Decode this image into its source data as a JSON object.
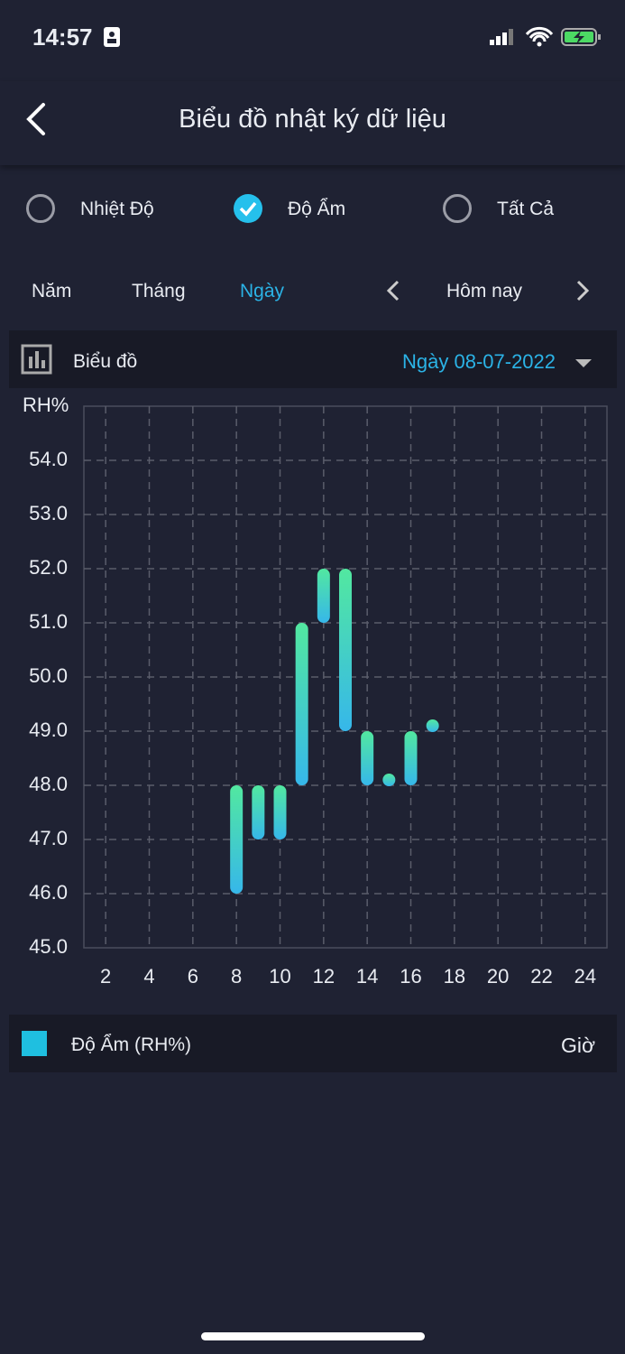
{
  "status_bar": {
    "time": "14:57"
  },
  "header": {
    "title": "Biểu đồ nhật ký dữ liệu"
  },
  "options": [
    "Nhiệt Độ",
    "Độ Ẩm",
    "Tất Cả"
  ],
  "selected_option": 1,
  "periods": [
    "Năm",
    "Tháng",
    "Ngày"
  ],
  "active_period": 2,
  "navigator": "Hôm nay",
  "chart_header": {
    "label": "Biểu đồ",
    "date": "Ngày 08-07-2022"
  },
  "chart_data": {
    "type": "range_bar",
    "y_label": "RH%",
    "x_label": "Giờ",
    "x": [
      8,
      9,
      10,
      11,
      12,
      13,
      14,
      15,
      16,
      17
    ],
    "series": [
      {
        "name": "Độ Ẩm (RH%)",
        "color": "#1fbfe0",
        "low": [
          46,
          47,
          47,
          48,
          51,
          49,
          48,
          48.1,
          48,
          49.1
        ],
        "high": [
          48,
          48,
          48,
          51,
          52,
          52,
          49,
          48.1,
          49,
          49.1
        ]
      }
    ],
    "xlim": [
      1,
      25
    ],
    "xticks": [
      2,
      4,
      6,
      8,
      10,
      12,
      14,
      16,
      18,
      20,
      22,
      24
    ],
    "ylim": [
      45,
      55
    ],
    "yticks": [
      {
        "value": 45,
        "label": "45.0"
      },
      {
        "value": 46,
        "label": "46.0"
      },
      {
        "value": 47,
        "label": "47.0"
      },
      {
        "value": 48,
        "label": "48.0"
      },
      {
        "value": 49,
        "label": "49.0"
      },
      {
        "value": 50,
        "label": "50.0"
      },
      {
        "value": 51,
        "label": "51.0"
      },
      {
        "value": 52,
        "label": "52.0"
      },
      {
        "value": 53,
        "label": "53.0"
      },
      {
        "value": 54,
        "label": "54.0"
      }
    ],
    "grid": true
  }
}
